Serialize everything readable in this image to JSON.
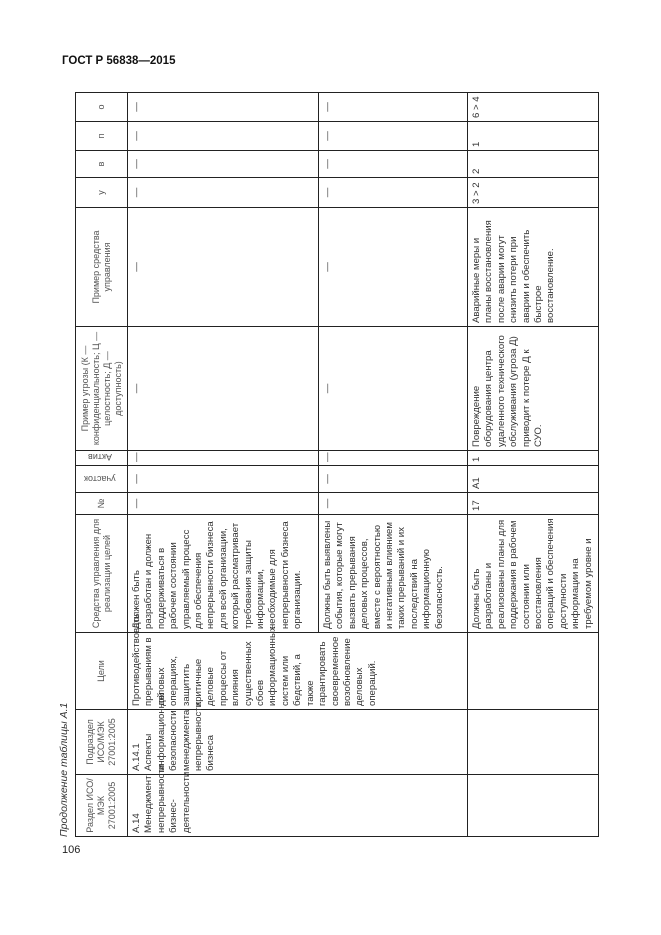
{
  "document": {
    "title": "ГОСТ Р 56838—2015",
    "page_number": "106",
    "caption": "Продолжение таблицы А.1"
  },
  "table": {
    "headers": {
      "section": "Раздел ИСО/МЭК 27001:2005",
      "subsection": "Подраздел ИСО/МЭК 27001:2005",
      "goals": "Цели",
      "controls": "Средства управления для реализации целей",
      "num": "№",
      "area": "участок",
      "asset": "Актив",
      "threat": "Пример угрозы (К — конфиденциальность; Ц — целостность; Д — доступность)",
      "control_example": "Пример средства управления",
      "u": "у",
      "v": "в",
      "p": "п",
      "o": "о"
    },
    "rows": [
      {
        "section": "А.14 Менеджмент непрерывности бизнес-деятельности",
        "subsection": "А.14.1 Аспекты информационной безопасности менеджмента непрерывности бизнеса",
        "goals": "Противодействовать прерываниям в деловых операциях, защитить критичные деловые процессы от влияния существенных сбоев информационных систем или бедствий, а также гарантировать своевременное возобновление деловых операций.",
        "controls": "Должен быть разработан и должен поддерживаться в рабочем состоянии управляемый процесс для обеспечения непрерывности бизнеса для всей организации, который рассматривает требования защиты информации, необходимые для непрерывности бизнеса организации.",
        "num": "—",
        "area": "—",
        "asset": "—",
        "threat": "—",
        "control_example": "—",
        "u": "—",
        "v": "—",
        "p": "—",
        "o": "—"
      },
      {
        "controls": "Должны быть выявлены события, которые могут вызвать прерывания деловых процессов, вместе с вероятностью и негативным влиянием таких прерываний и их последствий на информационную безопасность.",
        "num": "—",
        "area": "—",
        "asset": "—",
        "threat": "—",
        "control_example": "—",
        "u": "—",
        "v": "—",
        "p": "—",
        "o": "—"
      },
      {
        "section": "",
        "subsection": "",
        "goals": "",
        "controls": "Должны быть разработаны и реализованы планы для поддержания в рабочем состоянии или восстановления операций и обеспечения доступности информации на требуемом уровне и",
        "num": "17",
        "area": "А1",
        "asset": "1",
        "threat": "Повреждение оборудования центра удаленного технического обслуживания (угроза Д) приводит к потере Д к СУО.",
        "control_example": "Аварийные меры и планы восстановления после аварии могут снизить потери при аварии и обеспечить быстрое восстановление.",
        "u": "3 > 2",
        "v": "2",
        "p": "1",
        "o": "6 > 4"
      }
    ]
  }
}
